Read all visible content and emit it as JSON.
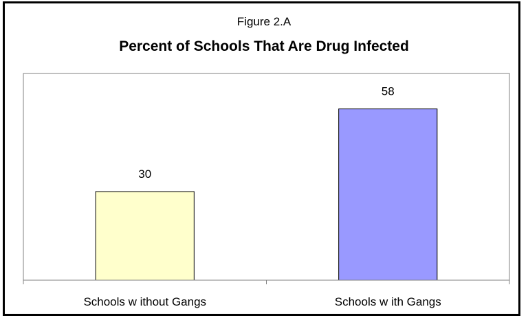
{
  "figure_label": "Figure 2.A",
  "colors": {
    "frame": "#000000",
    "bar_1": "#FFFFCC",
    "bar_2": "#9999FF",
    "axis": "#808080"
  },
  "chart_data": {
    "type": "bar",
    "title": "Percent of Schools That Are Drug Infected",
    "categories": [
      "Schools w ithout Gangs",
      "Schools w ith Gangs"
    ],
    "values": [
      30,
      58
    ],
    "data_labels": [
      "30",
      "58"
    ],
    "bar_colors": [
      "#FFFFCC",
      "#9999FF"
    ],
    "xlabel": "",
    "ylabel": "",
    "ylim": [
      0,
      70
    ],
    "grid": false,
    "legend": "none"
  }
}
